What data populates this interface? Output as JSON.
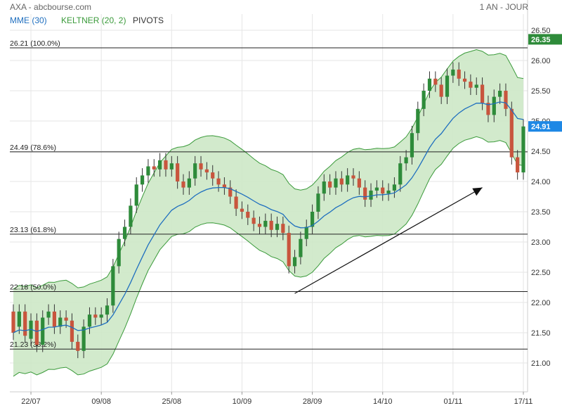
{
  "header": {
    "title": "AXA - abcbourse.com",
    "period": "1 AN - JOUR",
    "legend": [
      {
        "label": "MME (30)",
        "color": "#1f6fbf"
      },
      {
        "label": "KELTNER (20, 2)",
        "color": "#3a9a3a"
      },
      {
        "label": "PIVOTS",
        "color": "#333333"
      }
    ]
  },
  "badges": {
    "upper": {
      "text": "26.35",
      "value": 26.35,
      "color": "#2e8b3a"
    },
    "last": {
      "text": "24.91",
      "value": 24.91,
      "color": "#1e88e5"
    }
  },
  "chart_data": {
    "type": "candlestick",
    "ylim": [
      20.7,
      26.6
    ],
    "yticks": [
      "26.50",
      "26.00",
      "25.50",
      "25.00",
      "24.50",
      "24.00",
      "23.50",
      "23.00",
      "22.50",
      "22.00",
      "21.50",
      "21.00"
    ],
    "xticks": [
      "22/07",
      "09/08",
      "25/08",
      "10/09",
      "28/09",
      "14/10",
      "01/11",
      "17/11"
    ],
    "fib_levels": [
      {
        "label": "26.21",
        "pct": "(100.0%)",
        "value": 26.21
      },
      {
        "label": "24.49",
        "pct": "(78.6%)",
        "value": 24.49
      },
      {
        "label": "23.13",
        "pct": "(61.8%)",
        "value": 23.13
      },
      {
        "label": "22.18",
        "pct": "(50.0%)",
        "value": 22.18
      },
      {
        "label": "21.23",
        "pct": "(38.2%)",
        "value": 21.23
      }
    ],
    "trendline": {
      "from": {
        "i": 48,
        "y": 22.15
      },
      "to": {
        "i": 80,
        "y": 23.9
      }
    },
    "candles": [
      [
        21.85,
        21.5
      ],
      [
        21.6,
        21.85
      ],
      [
        21.85,
        21.45
      ],
      [
        21.4,
        21.7
      ],
      [
        21.7,
        21.3
      ],
      [
        21.3,
        21.75
      ],
      [
        21.75,
        21.85
      ],
      [
        21.85,
        21.6
      ],
      [
        21.6,
        21.75
      ],
      [
        21.75,
        21.7
      ],
      [
        21.7,
        21.35
      ],
      [
        21.35,
        21.2
      ],
      [
        21.2,
        21.6
      ],
      [
        21.6,
        21.8
      ],
      [
        21.8,
        21.75
      ],
      [
        21.75,
        21.8
      ],
      [
        21.8,
        21.95
      ],
      [
        21.95,
        22.6
      ],
      [
        22.6,
        23.05
      ],
      [
        23.05,
        23.25
      ],
      [
        23.25,
        23.6
      ],
      [
        23.6,
        23.95
      ],
      [
        23.95,
        24.1
      ],
      [
        24.1,
        24.25
      ],
      [
        24.25,
        24.2
      ],
      [
        24.2,
        24.35
      ],
      [
        24.35,
        24.2
      ],
      [
        24.2,
        24.3
      ],
      [
        24.3,
        24.0
      ],
      [
        24.0,
        23.9
      ],
      [
        23.9,
        24.05
      ],
      [
        24.05,
        24.3
      ],
      [
        24.3,
        24.2
      ],
      [
        24.2,
        24.15
      ],
      [
        24.15,
        24.05
      ],
      [
        24.05,
        23.95
      ],
      [
        23.95,
        23.9
      ],
      [
        23.9,
        23.75
      ],
      [
        23.75,
        23.55
      ],
      [
        23.55,
        23.5
      ],
      [
        23.5,
        23.4
      ],
      [
        23.4,
        23.3
      ],
      [
        23.3,
        23.25
      ],
      [
        23.25,
        23.35
      ],
      [
        23.35,
        23.2
      ],
      [
        23.2,
        23.3
      ],
      [
        23.3,
        23.15
      ],
      [
        23.15,
        22.6
      ],
      [
        22.6,
        22.75
      ],
      [
        22.75,
        23.05
      ],
      [
        23.05,
        23.25
      ],
      [
        23.25,
        23.5
      ],
      [
        23.5,
        23.8
      ],
      [
        23.8,
        24.0
      ],
      [
        24.0,
        23.9
      ],
      [
        23.9,
        24.05
      ],
      [
        24.05,
        23.95
      ],
      [
        23.95,
        24.1
      ],
      [
        24.1,
        24.05
      ],
      [
        24.05,
        23.9
      ],
      [
        23.9,
        23.7
      ],
      [
        23.7,
        23.85
      ],
      [
        23.85,
        23.9
      ],
      [
        23.9,
        23.8
      ],
      [
        23.8,
        23.85
      ],
      [
        23.85,
        23.95
      ],
      [
        23.95,
        24.3
      ],
      [
        24.3,
        24.4
      ],
      [
        24.4,
        24.8
      ],
      [
        24.8,
        25.2
      ],
      [
        25.2,
        25.5
      ],
      [
        25.5,
        25.7
      ],
      [
        25.7,
        25.6
      ],
      [
        25.6,
        25.4
      ],
      [
        25.4,
        25.75
      ],
      [
        25.75,
        25.85
      ],
      [
        25.85,
        25.7
      ],
      [
        25.7,
        25.65
      ],
      [
        25.65,
        25.55
      ],
      [
        25.55,
        25.6
      ],
      [
        25.6,
        25.3
      ],
      [
        25.3,
        25.1
      ],
      [
        25.1,
        25.4
      ],
      [
        25.4,
        25.5
      ],
      [
        25.5,
        25.2
      ],
      [
        25.2,
        24.4
      ],
      [
        24.4,
        24.15
      ],
      [
        24.15,
        24.91
      ]
    ]
  }
}
